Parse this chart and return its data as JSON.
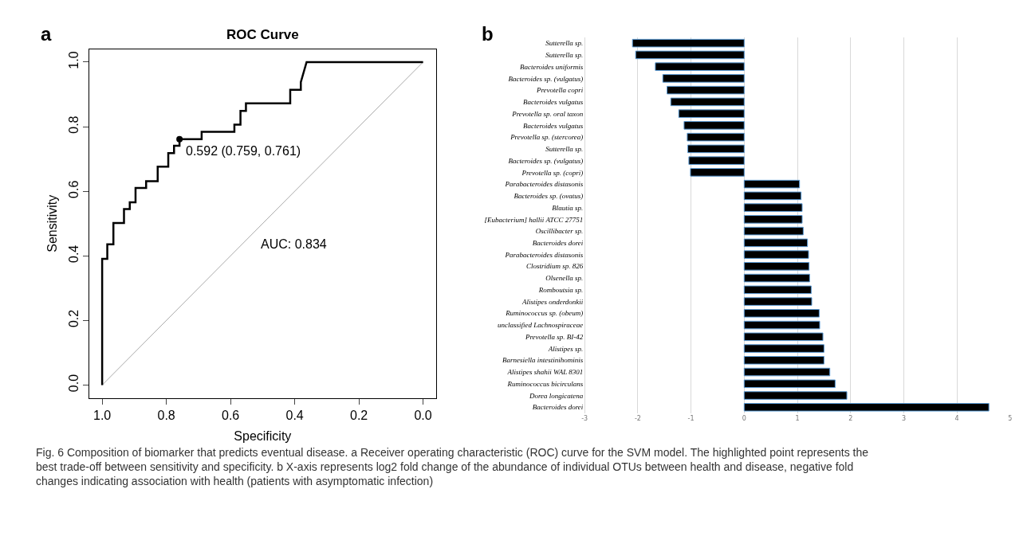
{
  "chart_data": [
    {
      "type": "line",
      "title": "ROC Curve",
      "xlabel": "Specificity",
      "ylabel": "Sensitivity",
      "xlim": [
        1.04,
        -0.04
      ],
      "ylim": [
        -0.04,
        1.04
      ],
      "xticks": [
        {
          "value": 1,
          "label": "1.0"
        },
        0.8,
        0.6,
        0.4,
        0.2,
        {
          "value": 0,
          "label": "0.0"
        }
      ],
      "yticks": [
        {
          "value": 0,
          "label": "0.0"
        },
        0.2,
        0.4,
        0.6,
        0.8,
        {
          "value": 1,
          "label": "1.0"
        }
      ],
      "grid": false,
      "series": [
        {
          "type": "line",
          "color": "#aaaaaa",
          "marker": "none",
          "x": [
            1,
            0
          ],
          "values": [
            0,
            1
          ]
        },
        {
          "type": "line",
          "color": "#000000",
          "marker": "none",
          "x": [
            1,
            1,
            0.984,
            0.984,
            0.965,
            0.965,
            0.932,
            0.932,
            0.914,
            0.914,
            0.896,
            0.896,
            0.863,
            0.863,
            0.827,
            0.827,
            0.794,
            0.794,
            0.776,
            0.776,
            0.759,
            0.759,
            0.69,
            0.69,
            0.588,
            0.588,
            0.569,
            0.569,
            0.552,
            0.552,
            0.414,
            0.414,
            0.381,
            0.381,
            0.363,
            0
          ],
          "values": [
            0,
            0.391,
            0.391,
            0.436,
            0.436,
            0.502,
            0.502,
            0.545,
            0.545,
            0.566,
            0.566,
            0.61,
            0.61,
            0.631,
            0.631,
            0.676,
            0.676,
            0.718,
            0.718,
            0.741,
            0.741,
            0.761,
            0.761,
            0.784,
            0.784,
            0.806,
            0.806,
            0.849,
            0.849,
            0.872,
            0.872,
            0.914,
            0.914,
            0.938,
            1,
            1
          ]
        },
        {
          "type": "scatter",
          "color": "#000000",
          "marker": "circle",
          "x": [
            0.759
          ],
          "values": [
            0.761
          ]
        }
      ],
      "annotations": [
        "a",
        {
          "text": "0.592 (0.759, 0.761)",
          "x": 0.759,
          "y": 0.761
        },
        "AUC: 0.834"
      ]
    },
    {
      "type": "bar",
      "orientation": "horizontal",
      "color": "#000000",
      "categories": [
        "Sutterella sp.",
        "Sutterella sp.",
        "Bacteroides uniformis",
        "Bacteroides sp. (vulgatus)",
        "Prevotella copri",
        "Bacteroides vulgatus",
        "Prevotella sp. oral taxon",
        "Bacteroides vulgatus",
        "Prevotella sp. (stercorea)",
        "Sutterella sp.",
        "Bacteroides sp. (vulgatus)",
        "Prevotella sp. (copri)",
        "Parabacteroides distasonis",
        "Bacteroides sp. (ovatus)",
        "Blautia sp.",
        "[Eubacterium] hallii ATCC 27751",
        "Oscillibacter sp.",
        "Bacteroides dorei",
        "Parabacteroides distasonis",
        "Clostridium sp. 826",
        "Olsenella sp.",
        "Romboutsia sp.",
        "Alistipes onderdonkii",
        "Ruminococcus sp. (obeum)",
        "unclassified Lachnospiraceae",
        "Prevotella sp. BI-42",
        "Alistipes sp.",
        "Barnesiella intestinihominis",
        "Alistipes shahii WAL 8301",
        "Ruminococcus bicirculans",
        "Dorea longicatena",
        "Bacteroides dorei"
      ],
      "values": [
        -2.1,
        -2.04,
        -1.67,
        -1.53,
        -1.45,
        -1.38,
        -1.23,
        -1.13,
        -1.07,
        -1.06,
        -1.04,
        -1.01,
        1.04,
        1.07,
        1.09,
        1.09,
        1.11,
        1.19,
        1.21,
        1.22,
        1.23,
        1.26,
        1.27,
        1.41,
        1.42,
        1.48,
        1.5,
        1.5,
        1.61,
        1.71,
        1.93,
        4.6
      ],
      "xlim": [
        -3,
        5
      ],
      "xticks": [
        -3,
        -2,
        -1,
        0,
        1,
        2,
        3,
        4,
        5
      ],
      "grid": "x",
      "annotations": [
        "b",
        "Fig. 6 Composition of biomarker that predicts eventual disease. a Receiver operating characteristic (ROC) curve for the SVM model. The highlighted point represents the best trade-off between sensitivity and specificity. b X-axis represents log2 fold change of the abundance of individual OTUs between health and disease, negative fold changes indicating association with health (patients with asymptomatic infection)"
      ]
    }
  ]
}
